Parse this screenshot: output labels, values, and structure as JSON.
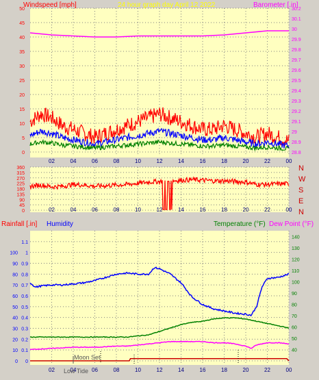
{
  "header": {
    "wind_label": "Windspeed [mph]",
    "title": "24 hour graph day   April 12 2022",
    "baro_label": "Barometer [.in]"
  },
  "wind_dir_labels": [
    "N",
    "W",
    "S",
    "E",
    "N"
  ],
  "lower_header": {
    "rain_label": "Rainfall [.in]",
    "humidity_label": "Humidity",
    "temp_label": "Temperature (°F)",
    "dew_label": "Dew Point (°F)"
  },
  "annotations": {
    "moon_set": "Moon Set",
    "low_tide": "Low Tide"
  },
  "colors": {
    "panel_bg": "#ffffc0",
    "frame": "#d4d0c8",
    "wind_gust": "#ff0000",
    "wind_avg": "#0000ff",
    "wind_min": "#008000",
    "barometer": "#ff00ff",
    "wind_dir": "#ff0000",
    "humidity": "#0000ff",
    "temperature": "#008000",
    "dew_point": "#ff00ff",
    "rainfall": "#cc0000",
    "title": "#ffff00"
  },
  "chart_data": [
    {
      "type": "line",
      "x_ticks": [
        "02",
        "04",
        "06",
        "08",
        "10",
        "12",
        "14",
        "16",
        "18",
        "20",
        "22",
        "00"
      ],
      "ylabel": "Windspeed [mph]",
      "ylim": [
        0,
        50
      ],
      "y_ticks": [
        0,
        5,
        10,
        15,
        20,
        25,
        30,
        35,
        40,
        45,
        50
      ],
      "y2label": "Barometer [.in]",
      "y2lim": [
        28.8,
        30.2
      ],
      "y2_ticks": [
        "28.8",
        "28.9",
        "29",
        "29.1",
        "29.2",
        "29.3",
        "29.4",
        "29.5",
        "29.6",
        "29.7",
        "29.8",
        "29.9",
        "30",
        "30.1",
        "30.2"
      ],
      "series": [
        {
          "name": "Windspeed",
          "x": [
            0,
            1,
            2,
            3,
            4,
            5,
            6,
            7,
            8,
            9,
            10,
            11,
            12,
            13,
            14,
            15,
            16,
            17,
            18,
            19,
            20,
            21,
            22,
            23,
            24
          ],
          "values": [
            7,
            9,
            8,
            6,
            5,
            4,
            3,
            4,
            5,
            6,
            7,
            8,
            9,
            8,
            7,
            6,
            5,
            5,
            6,
            5,
            4,
            3,
            4,
            3,
            2
          ]
        },
        {
          "name": "Barometer",
          "x": [
            0,
            2,
            4,
            6,
            8,
            10,
            12,
            14,
            16,
            18,
            20,
            22,
            24
          ],
          "values": [
            29.96,
            29.94,
            29.93,
            29.92,
            29.92,
            29.93,
            29.93,
            29.93,
            29.93,
            29.94,
            29.96,
            29.98,
            29.98
          ]
        }
      ]
    },
    {
      "type": "line",
      "x_ticks": [
        "02",
        "04",
        "06",
        "08",
        "10",
        "12",
        "14",
        "16",
        "18",
        "20",
        "22",
        "00"
      ],
      "ylim": [
        0,
        360
      ],
      "y_ticks": [
        0,
        45,
        90,
        135,
        180,
        225,
        270,
        315,
        360
      ],
      "series": [
        {
          "name": "Wind direction",
          "x": [
            0,
            1,
            2,
            3,
            4,
            5,
            6,
            7,
            8,
            9,
            10,
            11,
            12,
            13,
            14,
            15,
            16,
            17,
            18,
            19,
            20,
            21,
            22,
            23,
            24
          ],
          "values": [
            200,
            210,
            195,
            200,
            215,
            210,
            200,
            205,
            210,
            215,
            225,
            235,
            240,
            245,
            250,
            255,
            250,
            245,
            245,
            240,
            235,
            215,
            215,
            220,
            220
          ]
        }
      ]
    },
    {
      "type": "line",
      "x_ticks": [
        "02",
        "04",
        "06",
        "08",
        "10",
        "12",
        "14",
        "16",
        "18",
        "20",
        "22",
        "00"
      ],
      "ylabel": "Rainfall [.in]",
      "ylim": [
        0,
        1.2
      ],
      "y_ticks": [
        "0",
        "0.1",
        "0.2",
        "0.3",
        "0.4",
        "0.5",
        "0.6",
        "0.7",
        "0.8",
        "0.9",
        "1",
        "1.1"
      ],
      "humidity_ylim": [
        0,
        100
      ],
      "humidity_ticks": [
        0,
        10,
        20,
        30,
        40,
        50,
        60,
        70,
        80,
        90,
        100
      ],
      "y2label": "Temperature (°F)",
      "y2lim": [
        30,
        145
      ],
      "y2_ticks": [
        40,
        50,
        60,
        70,
        80,
        90,
        100,
        110,
        120,
        130,
        140
      ],
      "series": [
        {
          "name": "Humidity",
          "x": [
            0,
            0.5,
            1,
            2,
            3,
            4,
            5,
            6,
            7,
            8,
            9,
            10,
            11,
            11.5,
            12,
            13,
            14,
            15,
            16,
            17,
            18,
            19,
            20,
            20.5,
            21,
            21.5,
            22,
            23,
            24
          ],
          "values": [
            72,
            68,
            69,
            70,
            70,
            71,
            72,
            74,
            77,
            80,
            81,
            80,
            80,
            86,
            85,
            80,
            72,
            59,
            52,
            48,
            46,
            44,
            43,
            42,
            50,
            68,
            76,
            77,
            80
          ]
        },
        {
          "name": "Temperature",
          "x": [
            0,
            2,
            4,
            6,
            8,
            9,
            10,
            11,
            12,
            13,
            14,
            15,
            16,
            17,
            18,
            19,
            20,
            21,
            22,
            23,
            24
          ],
          "values": [
            51,
            51,
            51,
            51,
            51,
            51,
            52,
            53,
            56,
            59,
            62,
            64,
            65,
            67,
            68,
            68,
            67,
            65,
            63,
            61,
            59
          ]
        },
        {
          "name": "Dew Point",
          "x": [
            0,
            2,
            4,
            6,
            8,
            9,
            10,
            11,
            12,
            13,
            14,
            15,
            16,
            17,
            18,
            19,
            20,
            20.5,
            21,
            22,
            23,
            24
          ],
          "values": [
            40,
            41,
            42,
            42,
            43,
            43,
            44,
            45,
            46,
            47,
            47,
            47,
            47,
            46,
            46,
            45,
            43,
            41,
            44,
            46,
            46,
            45
          ]
        },
        {
          "name": "Rainfall",
          "x": [
            0,
            9.2,
            9.3,
            12,
            14,
            16,
            18,
            20,
            22,
            23.8,
            24
          ],
          "values": [
            0,
            0,
            0.02,
            0.02,
            0.02,
            0.02,
            0.02,
            0.02,
            0.02,
            0.02,
            0
          ]
        }
      ]
    }
  ]
}
